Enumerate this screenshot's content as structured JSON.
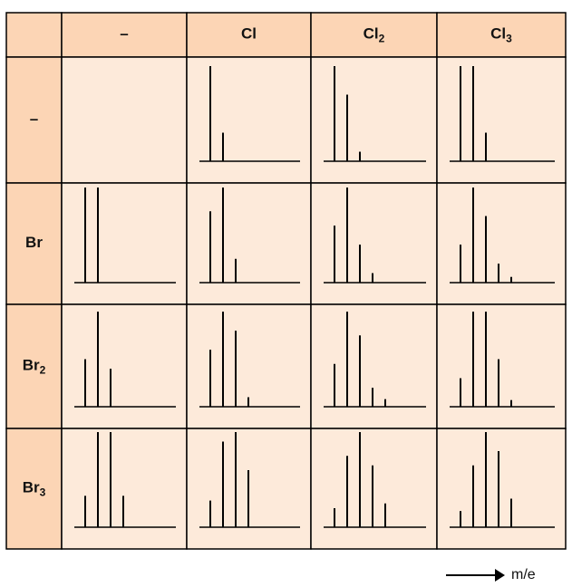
{
  "colors": {
    "header_fill": "#FCD5B5",
    "cell_fill": "#FDEADA",
    "border": "#000000",
    "peak": "#000000"
  },
  "column_headers": [
    {
      "main": "–",
      "sub": ""
    },
    {
      "main": "Cl",
      "sub": ""
    },
    {
      "main": "Cl",
      "sub": "2"
    },
    {
      "main": "Cl",
      "sub": "3"
    }
  ],
  "row_headers": [
    {
      "main": "–",
      "sub": ""
    },
    {
      "main": "Br",
      "sub": ""
    },
    {
      "main": "Br",
      "sub": "2"
    },
    {
      "main": "Br",
      "sub": "3"
    }
  ],
  "axis_caption": "m/e",
  "chart_data": {
    "type": "bar",
    "description_level": "isotope pattern peak heights (relative intensity, largest = 100)",
    "xlabel": "m/e",
    "cells": [
      [
        null,
        [
          100,
          30
        ],
        [
          100,
          70,
          10
        ],
        [
          100,
          100,
          30
        ]
      ],
      [
        [
          100,
          100
        ],
        [
          75,
          100,
          25
        ],
        [
          60,
          100,
          40,
          10
        ],
        [
          40,
          100,
          70,
          20,
          6
        ]
      ],
      [
        [
          50,
          100,
          40
        ],
        [
          60,
          100,
          80,
          10
        ],
        [
          45,
          100,
          75,
          20,
          8
        ],
        [
          30,
          100,
          100,
          50,
          7
        ]
      ],
      [
        [
          33,
          100,
          100,
          33
        ],
        [
          28,
          90,
          100,
          60
        ],
        [
          20,
          75,
          100,
          65,
          25
        ],
        [
          17,
          65,
          100,
          80,
          30
        ]
      ]
    ]
  }
}
